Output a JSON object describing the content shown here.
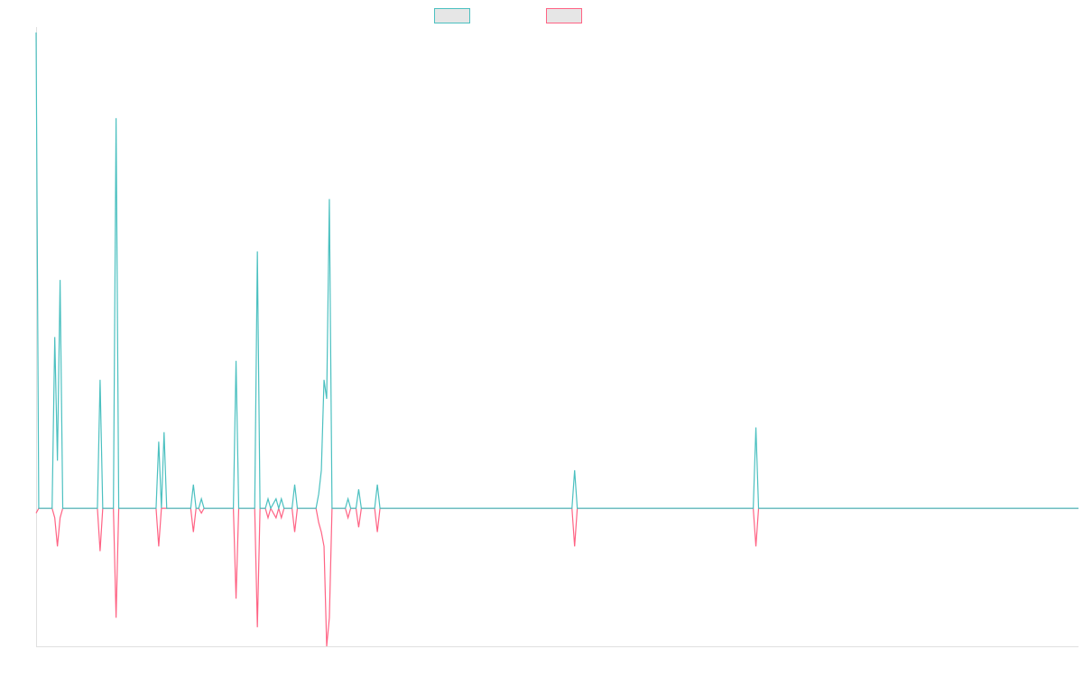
{
  "chart_data": {
    "type": "line",
    "x": [
      0,
      1,
      6,
      7,
      8,
      9,
      10,
      23,
      24,
      25,
      29,
      30,
      31,
      45,
      46,
      47,
      48,
      49,
      58,
      59,
      60,
      61,
      62,
      63,
      74,
      75,
      76,
      82,
      83,
      84,
      86,
      87,
      88,
      90,
      91,
      92,
      93,
      96,
      97,
      98,
      105,
      106,
      107,
      108,
      109,
      110,
      111,
      116,
      117,
      118,
      120,
      121,
      122,
      127,
      128,
      129,
      201,
      202,
      203,
      269,
      270,
      271,
      391
    ],
    "series": [
      {
        "color": "#4bc0c0",
        "values": [
          100,
          0,
          0,
          36,
          10,
          48,
          0,
          0,
          27,
          0,
          0,
          82,
          0,
          0,
          14,
          0,
          16,
          0,
          0,
          5,
          0,
          0,
          2,
          0,
          0,
          31,
          0,
          0,
          54,
          0,
          0,
          2,
          0,
          2,
          0,
          2,
          0,
          0,
          5,
          0,
          0,
          3,
          8,
          27,
          23,
          65,
          0,
          0,
          2,
          0,
          0,
          4,
          0,
          0,
          5,
          0,
          0,
          8,
          0,
          0,
          17,
          0,
          0
        ]
      },
      {
        "color": "#ff6384",
        "values": [
          -1,
          0,
          0,
          -2,
          -8,
          -2,
          0,
          0,
          -9,
          0,
          0,
          -23,
          0,
          0,
          -8,
          0,
          0,
          0,
          0,
          -5,
          0,
          0,
          -1,
          0,
          0,
          -19,
          0,
          0,
          -25,
          0,
          0,
          -2,
          0,
          -2,
          0,
          -2,
          0,
          0,
          -5,
          0,
          0,
          -3,
          -5,
          -8,
          -29,
          -23,
          0,
          0,
          -2,
          0,
          0,
          -4,
          0,
          0,
          -5,
          0,
          0,
          -8,
          0,
          0,
          -8,
          0,
          0
        ]
      }
    ],
    "xlim": [
      0,
      391
    ],
    "ylim": [
      -29,
      100
    ]
  }
}
